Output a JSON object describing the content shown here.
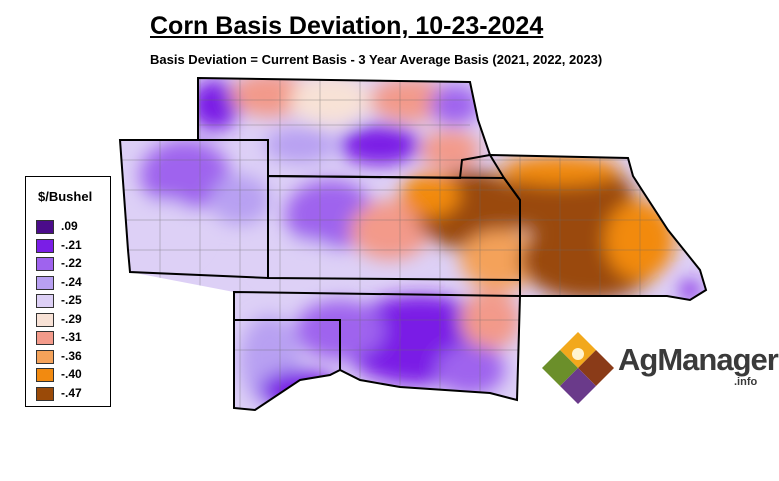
{
  "title": "Corn Basis Deviation, 10-23-2024",
  "subtitle": "Basis Deviation = Current Basis - 3 Year Average Basis (2021, 2022, 2023)",
  "legend": {
    "title": "$/Bushel",
    "items": [
      {
        "label": ".09",
        "color": "#4b0c8a"
      },
      {
        "label": "-.21",
        "color": "#7a1ee6"
      },
      {
        "label": "-.22",
        "color": "#9f63ee"
      },
      {
        "label": "-.24",
        "color": "#b8a0f2"
      },
      {
        "label": "-.25",
        "color": "#ddd0f6"
      },
      {
        "label": "-.29",
        "color": "#f8e2d6"
      },
      {
        "label": "-.31",
        "color": "#f39a8a"
      },
      {
        "label": "-.36",
        "color": "#f4a25a"
      },
      {
        "label": "-.40",
        "color": "#f28a10"
      },
      {
        "label": "-.47",
        "color": "#9a4a08"
      }
    ]
  },
  "logo": {
    "name": "AgManager",
    "suffix": ".info",
    "colors": [
      "#f2a81c",
      "#8a3b18",
      "#6b8f2a",
      "#6a3a8a"
    ]
  }
}
